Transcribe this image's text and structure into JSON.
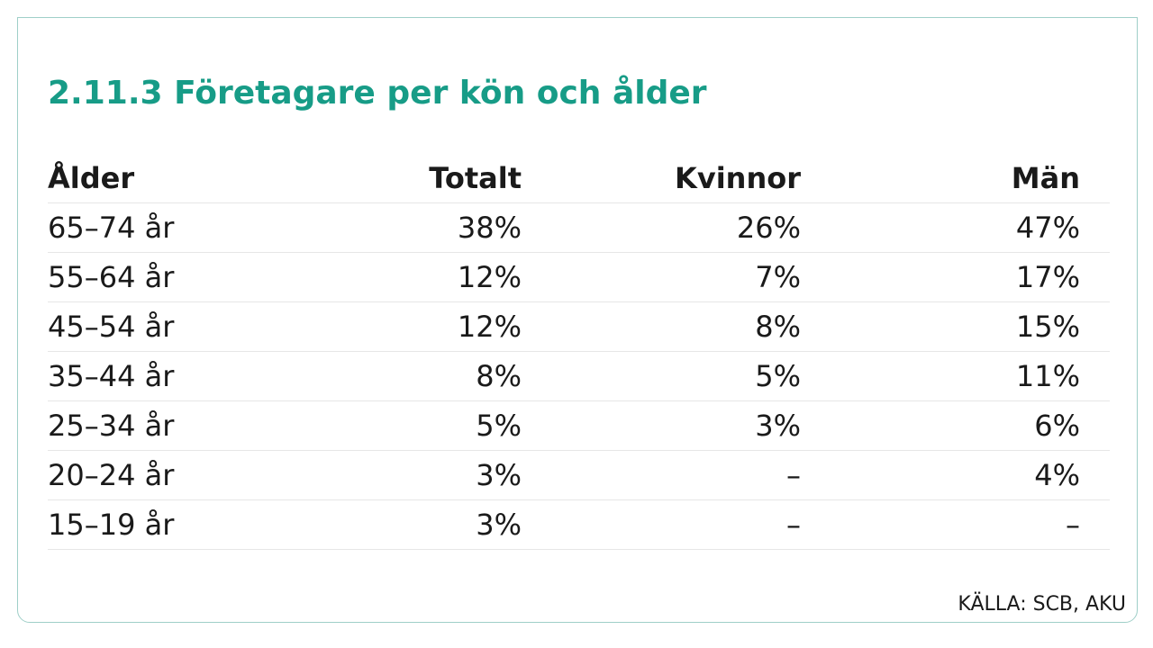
{
  "title": "2.11.3  Företagare per kön och ålder",
  "table": {
    "headers": {
      "age": "Ålder",
      "total": "Totalt",
      "women": "Kvinnor",
      "men": "Män"
    },
    "rows": [
      {
        "age": "65–74 år",
        "total": "38%",
        "women": "26%",
        "men": "47%"
      },
      {
        "age": "55–64 år",
        "total": "12%",
        "women": "7%",
        "men": "17%"
      },
      {
        "age": "45–54 år",
        "total": "12%",
        "women": "8%",
        "men": "15%"
      },
      {
        "age": "35–44 år",
        "total": "8%",
        "women": "5%",
        "men": "11%"
      },
      {
        "age": "25–34 år",
        "total": "5%",
        "women": "3%",
        "men": "6%"
      },
      {
        "age": "20–24 år",
        "total": "3%",
        "women": "–",
        "men": "4%"
      },
      {
        "age": "15–19 år",
        "total": "3%",
        "women": "–",
        "men": "–"
      }
    ]
  },
  "source": "KÄLLA: SCB, AKU",
  "colors": {
    "title": "#179c87",
    "frame": "#9fcfc8",
    "text": "#1a1a1a",
    "row_divider": "#e6e6e6"
  }
}
